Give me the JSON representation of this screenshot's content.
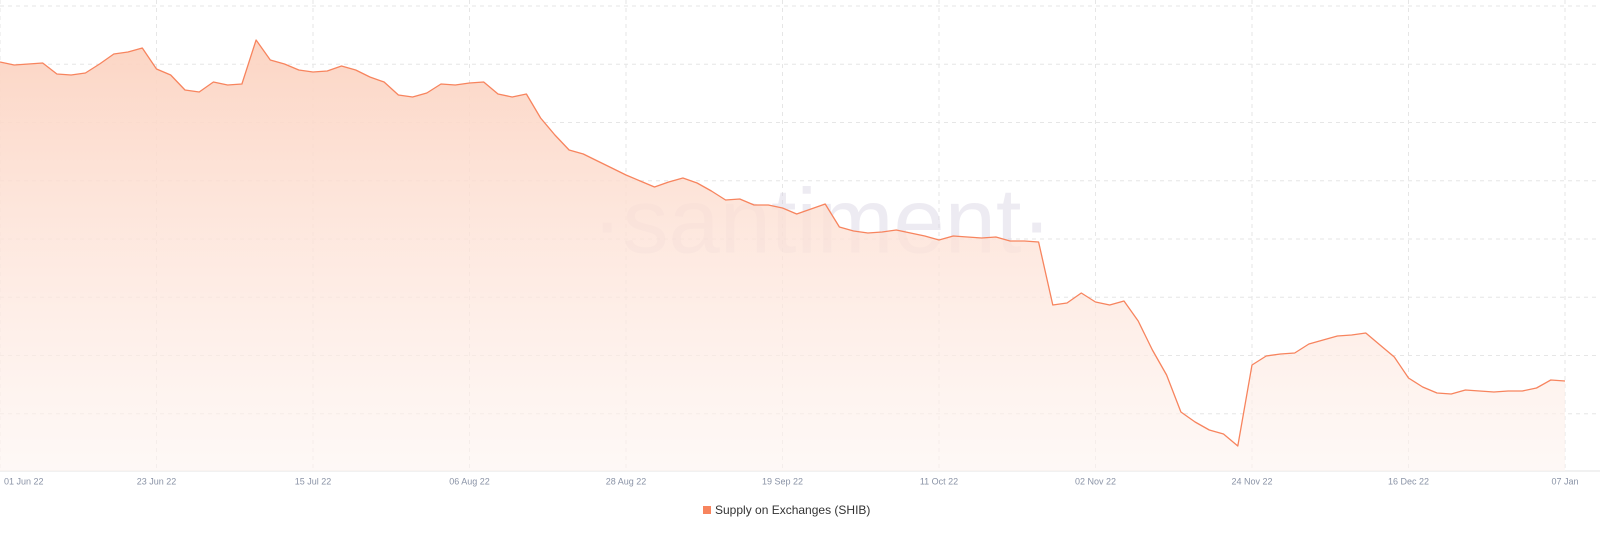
{
  "chart_data": {
    "type": "area",
    "watermark": "·santiment·",
    "x": [
      "2022-06-01",
      "2022-06-03",
      "2022-06-05",
      "2022-06-07",
      "2022-06-09",
      "2022-06-11",
      "2022-06-13",
      "2022-06-15",
      "2022-06-17",
      "2022-06-19",
      "2022-06-21",
      "2022-06-23",
      "2022-06-25",
      "2022-06-27",
      "2022-06-29",
      "2022-07-01",
      "2022-07-03",
      "2022-07-05",
      "2022-07-07",
      "2022-07-09",
      "2022-07-11",
      "2022-07-13",
      "2022-07-15",
      "2022-07-17",
      "2022-07-19",
      "2022-07-21",
      "2022-07-23",
      "2022-07-25",
      "2022-07-27",
      "2022-07-29",
      "2022-07-31",
      "2022-08-02",
      "2022-08-04",
      "2022-08-06",
      "2022-08-08",
      "2022-08-10",
      "2022-08-12",
      "2022-08-14",
      "2022-08-16",
      "2022-08-18",
      "2022-08-20",
      "2022-08-22",
      "2022-08-24",
      "2022-08-26",
      "2022-08-28",
      "2022-08-30",
      "2022-09-01",
      "2022-09-03",
      "2022-09-05",
      "2022-09-07",
      "2022-09-09",
      "2022-09-11",
      "2022-09-13",
      "2022-09-15",
      "2022-09-17",
      "2022-09-19",
      "2022-09-21",
      "2022-09-23",
      "2022-09-25",
      "2022-09-27",
      "2022-09-29",
      "2022-10-01",
      "2022-10-03",
      "2022-10-05",
      "2022-10-07",
      "2022-10-09",
      "2022-10-11",
      "2022-10-13",
      "2022-10-15",
      "2022-10-17",
      "2022-10-19",
      "2022-10-21",
      "2022-10-23",
      "2022-10-25",
      "2022-10-27",
      "2022-10-29",
      "2022-10-31",
      "2022-11-02",
      "2022-11-04",
      "2022-11-06",
      "2022-11-08",
      "2022-11-10",
      "2022-11-12",
      "2022-11-14",
      "2022-11-16",
      "2022-11-18",
      "2022-11-20",
      "2022-11-22",
      "2022-11-24",
      "2022-11-26",
      "2022-11-28",
      "2022-11-30",
      "2022-12-02",
      "2022-12-04",
      "2022-12-06",
      "2022-12-08",
      "2022-12-10",
      "2022-12-12",
      "2022-12-14",
      "2022-12-16",
      "2022-12-18",
      "2022-12-20",
      "2022-12-22",
      "2022-12-24",
      "2022-12-26",
      "2022-12-28",
      "2022-12-30",
      "2023-01-01",
      "2023-01-03",
      "2023-01-05",
      "2023-01-07"
    ],
    "series": [
      {
        "name": "Supply on Exchanges (SHIB)",
        "color": "#f7845e",
        "values": [
          40.9,
          40.6,
          40.7,
          40.8,
          39.7,
          39.6,
          39.8,
          40.7,
          41.7,
          41.9,
          42.3,
          40.2,
          39.6,
          38.1,
          37.9,
          38.9,
          38.6,
          38.7,
          43.1,
          41.1,
          40.7,
          40.1,
          39.9,
          40.0,
          40.5,
          40.1,
          39.4,
          38.9,
          37.6,
          37.4,
          37.8,
          38.7,
          38.6,
          38.8,
          38.9,
          37.7,
          37.4,
          37.7,
          35.3,
          33.6,
          32.1,
          31.7,
          31.0,
          30.3,
          29.6,
          29.0,
          28.4,
          28.9,
          29.3,
          28.8,
          28.0,
          27.1,
          27.2,
          26.6,
          26.6,
          26.3,
          25.7,
          26.2,
          26.7,
          24.4,
          24.0,
          23.8,
          23.9,
          24.1,
          23.8,
          23.5,
          23.1,
          23.5,
          23.4,
          23.3,
          23.4,
          23.0,
          23.0,
          22.9,
          16.6,
          16.8,
          17.8,
          16.9,
          16.6,
          17.0,
          15.0,
          12.1,
          9.6,
          5.9,
          4.9,
          4.1,
          3.7,
          2.5,
          10.6,
          11.5,
          11.7,
          11.8,
          12.7,
          13.1,
          13.5,
          13.6,
          13.8,
          12.6,
          11.4,
          9.3,
          8.4,
          7.8,
          7.7,
          8.1,
          8.0,
          7.9,
          8.0,
          8.0,
          8.3,
          9.1,
          9.0
        ]
      }
    ],
    "xlim": [
      "2022-06-01",
      "2023-01-07"
    ],
    "ylim": [
      0,
      46.6
    ],
    "xticks": [
      {
        "value": "2022-06-01",
        "label": "01 Jun 22"
      },
      {
        "value": "2022-06-23",
        "label": "23 Jun 22"
      },
      {
        "value": "2022-07-15",
        "label": "15 Jul 22"
      },
      {
        "value": "2022-08-06",
        "label": "06 Aug 22"
      },
      {
        "value": "2022-08-28",
        "label": "28 Aug 22"
      },
      {
        "value": "2022-09-19",
        "label": "19 Sep 22"
      },
      {
        "value": "2022-10-11",
        "label": "11 Oct 22"
      },
      {
        "value": "2022-11-02",
        "label": "02 Nov 22"
      },
      {
        "value": "2022-11-24",
        "label": "24 Nov 22"
      },
      {
        "value": "2022-12-16",
        "label": "16 Dec 22"
      },
      {
        "value": "2023-01-07",
        "label": "07 Jan"
      }
    ],
    "grid": true,
    "legend": "bottom"
  }
}
